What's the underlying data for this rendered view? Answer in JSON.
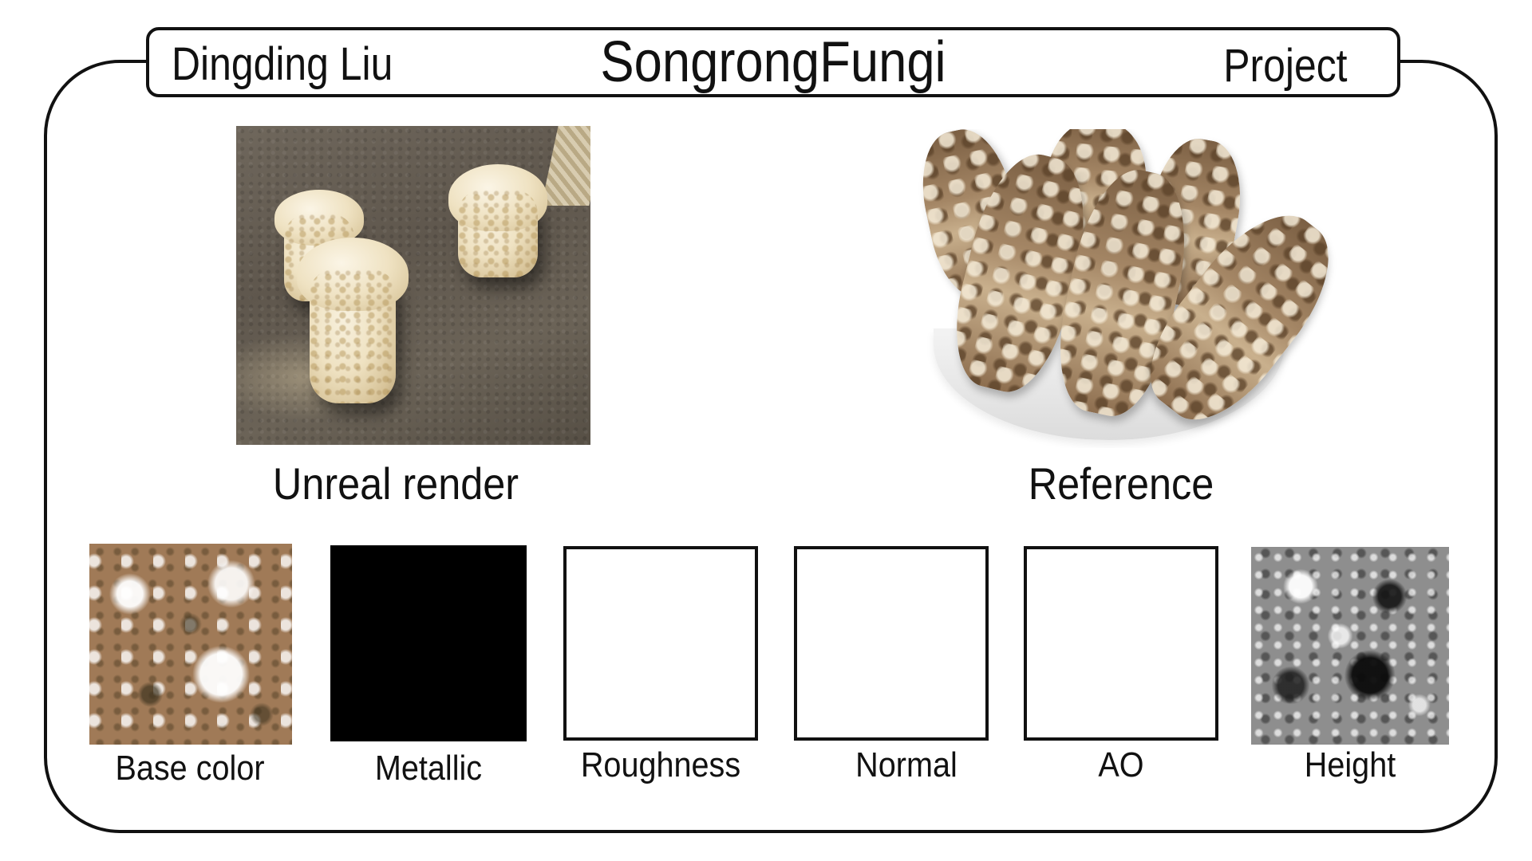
{
  "header": {
    "author": "Dingding Liu",
    "title": "SongrongFungi",
    "label": "Project"
  },
  "images": {
    "render_caption": "Unreal render",
    "reference_caption": "Reference"
  },
  "texture_maps": [
    {
      "label": "Base color"
    },
    {
      "label": "Metallic"
    },
    {
      "label": "Roughness"
    },
    {
      "label": "Normal"
    },
    {
      "label": "AO"
    },
    {
      "label": "Height"
    }
  ]
}
